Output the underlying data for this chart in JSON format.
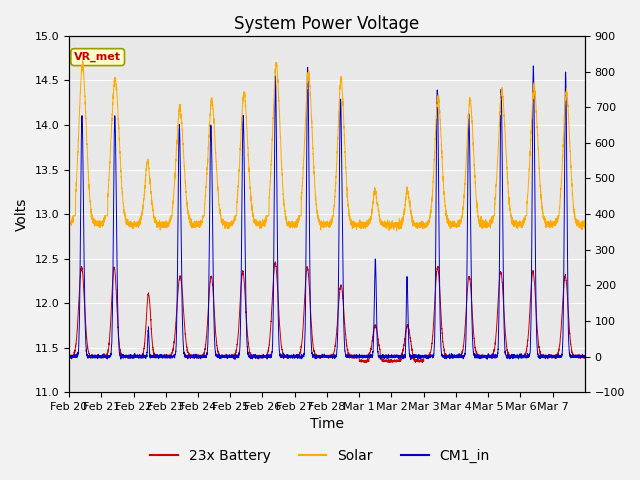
{
  "title": "System Power Voltage",
  "xlabel": "Time",
  "ylabel": "Volts",
  "ylim_left": [
    11.0,
    15.0
  ],
  "ylim_right": [
    -100,
    900
  ],
  "yticks_left": [
    11.0,
    11.5,
    12.0,
    12.5,
    13.0,
    13.5,
    14.0,
    14.5,
    15.0
  ],
  "yticks_right": [
    -100,
    0,
    100,
    200,
    300,
    400,
    500,
    600,
    700,
    800,
    900
  ],
  "xtick_labels": [
    "Feb 20",
    "Feb 21",
    "Feb 22",
    "Feb 23",
    "Feb 24",
    "Feb 25",
    "Feb 26",
    "Feb 27",
    "Feb 28",
    "Mar 1",
    "Mar 2",
    "Mar 3",
    "Mar 4",
    "Mar 5",
    "Mar 6",
    "Mar 7"
  ],
  "legend_labels": [
    "23x Battery",
    "Solar",
    "CM1_in"
  ],
  "battery_color": "#cc0000",
  "solar_color": "#ffaa00",
  "cm1_color": "#0000cc",
  "vr_met_label": "VR_met",
  "vr_met_text_color": "#cc0000",
  "background_color": "#e8e8e8",
  "plot_bg_color": "#d8d8d8",
  "grid_color": "#ffffff",
  "title_fontsize": 12,
  "axis_fontsize": 10,
  "tick_fontsize": 8,
  "legend_fontsize": 10,
  "n_days": 16,
  "figwidth": 6.4,
  "figheight": 4.8,
  "dpi": 100
}
